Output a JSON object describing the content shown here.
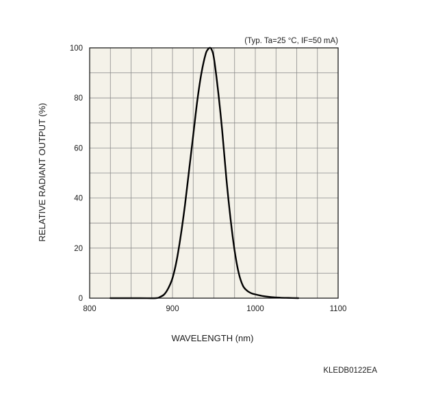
{
  "chart_data": {
    "type": "line",
    "title": "",
    "condition_note": "(Typ. Ta=25 °C, IF=50 mA)",
    "xlabel": "WAVELENGTH (nm)",
    "ylabel": "RELATIVE RADIANT OUTPUT (%)",
    "xlim": [
      800,
      1100
    ],
    "ylim": [
      0,
      100
    ],
    "xticks": [
      800,
      900,
      1000,
      1100
    ],
    "yticks": [
      0,
      20,
      40,
      60,
      80,
      100
    ],
    "x_minor_grid_step": 25,
    "y_minor_grid_step": 10,
    "grid": true,
    "plot_background": "#f4f2e9",
    "line_color": "#000000",
    "series": [
      {
        "x": [
          825,
          860,
          880,
          885,
          890,
          895,
          900,
          905,
          910,
          915,
          920,
          925,
          930,
          935,
          940,
          943,
          945,
          947,
          950,
          955,
          960,
          965,
          970,
          975,
          980,
          985,
          990,
          995,
          1000,
          1010,
          1020,
          1030,
          1040,
          1052
        ],
        "y": [
          0,
          0,
          0,
          0.5,
          1.5,
          4,
          8,
          15,
          25,
          37,
          51,
          65,
          79,
          90,
          97.5,
          99.5,
          100,
          99.5,
          96,
          83,
          67,
          48,
          32,
          19,
          10,
          5,
          3,
          2,
          1.5,
          0.8,
          0.4,
          0.2,
          0.1,
          0
        ]
      }
    ],
    "document_code": "KLEDB0122EA"
  }
}
